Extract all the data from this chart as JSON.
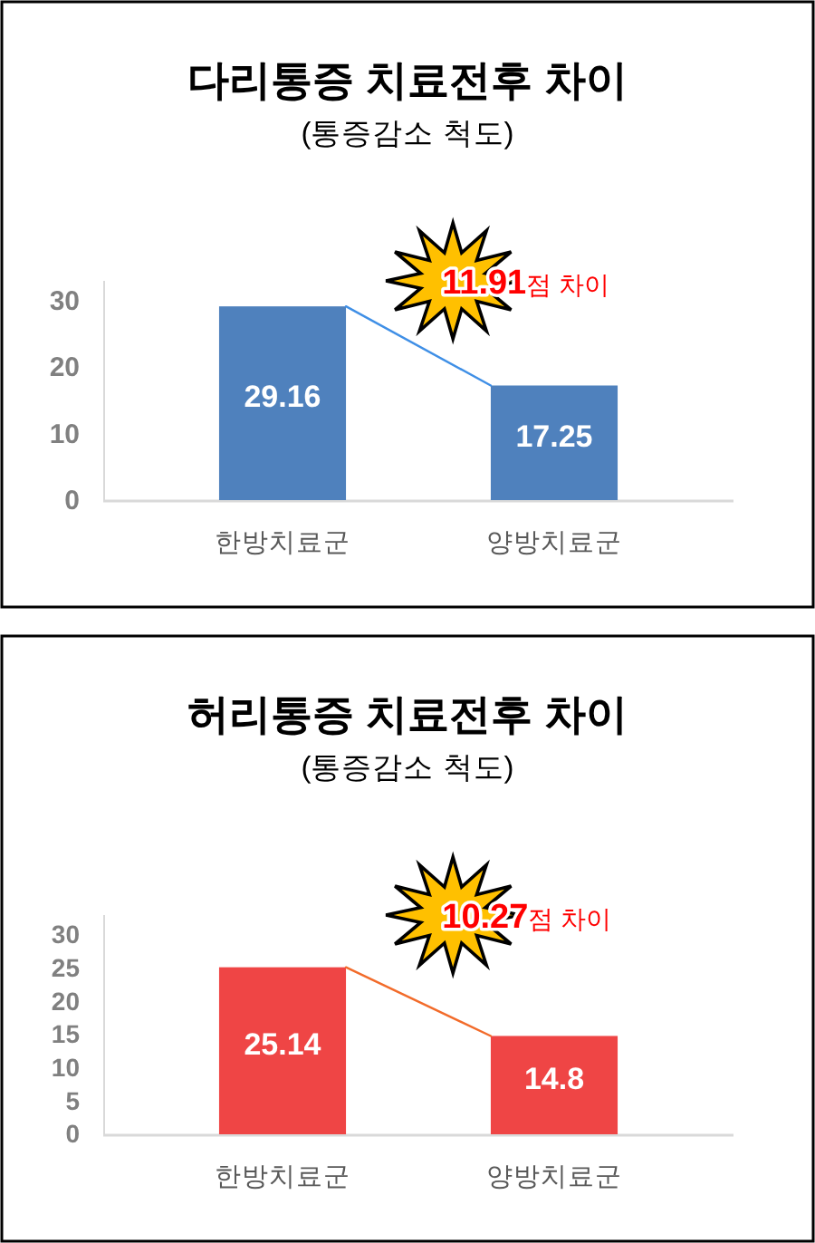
{
  "chart_data": [
    {
      "type": "bar",
      "title": "다리통증 치료전후 차이",
      "subtitle": "(통증감소 척도)",
      "categories": [
        "한방치료군",
        "양방치료군"
      ],
      "series": [
        {
          "type": "bar",
          "color": "#4f81bd",
          "values": [
            29.16,
            17.25
          ],
          "value_labels": [
            "29.16",
            "17.25"
          ]
        }
      ],
      "ylim": [
        0,
        33
      ],
      "yticks": [
        0,
        10,
        20,
        30
      ],
      "annotations": [
        "11.91점 차이"
      ]
    },
    {
      "type": "bar",
      "title": "허리통증 치료전후 차이",
      "subtitle": "(통증감소 척도)",
      "categories": [
        "한방치료군",
        "양방치료군"
      ],
      "series": [
        {
          "type": "bar",
          "color": "#ef4545",
          "values": [
            25.14,
            14.8
          ],
          "value_labels": [
            "25.14",
            "14.8"
          ]
        }
      ],
      "ylim": [
        0,
        33
      ],
      "yticks": [
        0,
        5,
        10,
        15,
        20,
        25,
        30
      ],
      "annotations": [
        "10.27점 차이"
      ]
    }
  ]
}
